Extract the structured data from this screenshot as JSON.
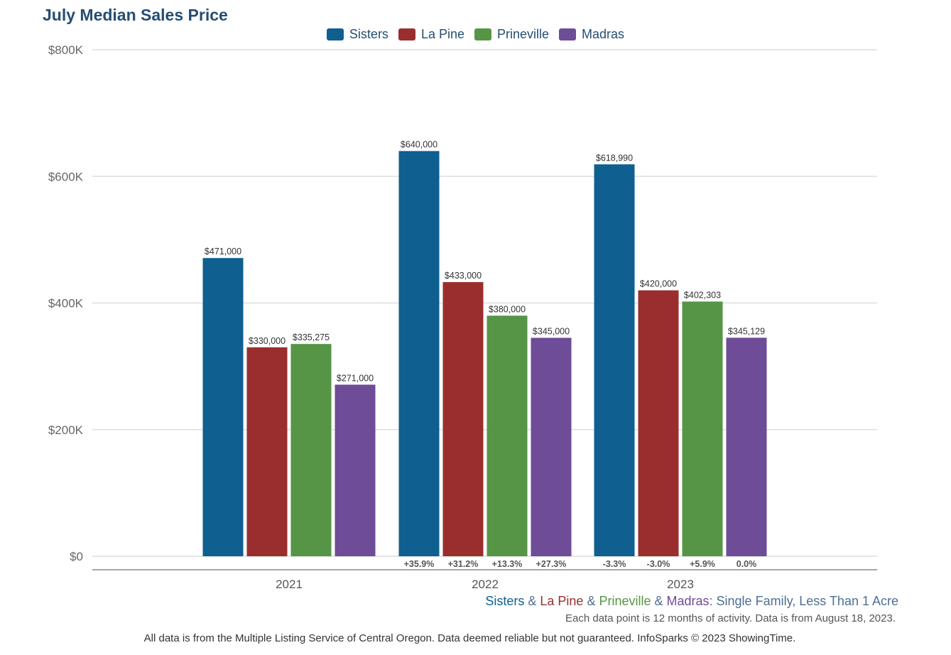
{
  "chart_data": {
    "type": "bar",
    "title": "July Median Sales Price",
    "categories": [
      "2021",
      "2022",
      "2023"
    ],
    "series": [
      {
        "name": "Sisters",
        "color": "#0f5f91",
        "values": [
          471000,
          640000,
          618990
        ],
        "labels": [
          "$471,000",
          "$640,000",
          "$618,990"
        ],
        "changes": [
          "",
          "+35.9%",
          "-3.3%"
        ]
      },
      {
        "name": "La Pine",
        "color": "#9a2e2e",
        "values": [
          330000,
          433000,
          420000
        ],
        "labels": [
          "$330,000",
          "$433,000",
          "$420,000"
        ],
        "changes": [
          "",
          "+31.2%",
          "-3.0%"
        ]
      },
      {
        "name": "Prineville",
        "color": "#569545",
        "values": [
          335275,
          380000,
          402303
        ],
        "labels": [
          "$335,275",
          "$380,000",
          "$402,303"
        ],
        "changes": [
          "",
          "+13.3%",
          "+5.9%"
        ]
      },
      {
        "name": "Madras",
        "color": "#6e4c98",
        "values": [
          271000,
          345000,
          345129
        ],
        "labels": [
          "$271,000",
          "$345,000",
          "$345,129"
        ],
        "changes": [
          "",
          "+27.3%",
          "0.0%"
        ]
      }
    ],
    "yticks": [
      0,
      200000,
      400000,
      600000,
      800000
    ],
    "ytick_labels": [
      "$0",
      "$200K",
      "$400K",
      "$600K",
      "$800K"
    ],
    "ylim": [
      0,
      800000
    ],
    "grid": true,
    "legend": "top-center"
  },
  "subtitle": {
    "parts": [
      {
        "text": "Sisters",
        "color": "#0f5f91"
      },
      {
        "text": " & ",
        "color": "#4e6f94"
      },
      {
        "text": "La Pine",
        "color": "#9a2e2e"
      },
      {
        "text": " & ",
        "color": "#4e6f94"
      },
      {
        "text": "Prineville",
        "color": "#569545"
      },
      {
        "text": " & ",
        "color": "#4e6f94"
      },
      {
        "text": "Madras",
        "color": "#6e4c98"
      },
      {
        "text": ": Single Family, Less Than 1 Acre",
        "color": "#4e6f94"
      }
    ]
  },
  "note": "Each data point is 12 months of activity. Data is from August 18, 2023.",
  "footer": "All data is from the Multiple Listing Service of Central Oregon. Data deemed reliable but not guaranteed. InfoSparks © 2023 ShowingTime."
}
